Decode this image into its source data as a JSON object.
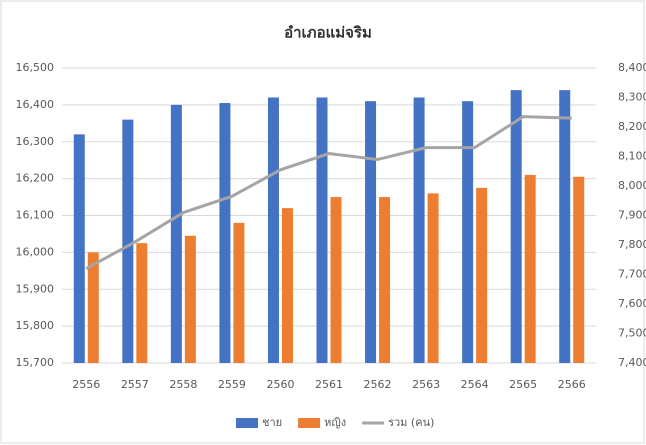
{
  "chart_data": {
    "type": "bar_line",
    "title": "อำเภอแม่จริม",
    "categories": [
      "2556",
      "2557",
      "2558",
      "2559",
      "2560",
      "2561",
      "2562",
      "2563",
      "2564",
      "2565",
      "2566"
    ],
    "series": [
      {
        "name": "ชาย",
        "color": "#4472c4",
        "type": "bar",
        "values": [
          16320,
          16360,
          16400,
          16405,
          16420,
          16420,
          16410,
          16420,
          16410,
          16440,
          16440
        ]
      },
      {
        "name": "หญิง",
        "color": "#ed7d31",
        "type": "bar",
        "values": [
          16000,
          16025,
          16045,
          16080,
          16120,
          16150,
          16150,
          16160,
          16175,
          16210,
          16205
        ]
      },
      {
        "name": "รวม (คน)",
        "color": "#a5a5a5",
        "type": "line",
        "axis": "y2",
        "values": [
          7720,
          7810,
          7910,
          7965,
          8055,
          8110,
          8090,
          8130,
          8130,
          8235,
          8230
        ]
      }
    ],
    "ylim": [
      15700,
      16500
    ],
    "yticks": [
      {
        "value": 15700,
        "label": "15,700"
      },
      {
        "value": 15800,
        "label": "15,800"
      },
      {
        "value": 15900,
        "label": "15,900"
      },
      {
        "value": 16000,
        "label": "16,000"
      },
      {
        "value": 16100,
        "label": "16,100"
      },
      {
        "value": 16200,
        "label": "16,200"
      },
      {
        "value": 16300,
        "label": "16,300"
      },
      {
        "value": 16400,
        "label": "16,400"
      },
      {
        "value": 16500,
        "label": "16,500"
      }
    ],
    "y2lim": [
      7400,
      8400
    ],
    "y2ticks": [
      {
        "value": 7400,
        "label": "7,400"
      },
      {
        "value": 7500,
        "label": "7,500"
      },
      {
        "value": 7600,
        "label": "7,600"
      },
      {
        "value": 7700,
        "label": "7,700"
      },
      {
        "value": 7800,
        "label": "7,800"
      },
      {
        "value": 7900,
        "label": "7,900"
      },
      {
        "value": 8000,
        "label": "8,000"
      },
      {
        "value": 8100,
        "label": "8,100"
      },
      {
        "value": 8200,
        "label": "8,200"
      },
      {
        "value": 8300,
        "label": "8,300"
      },
      {
        "value": 8400,
        "label": "8,400"
      }
    ],
    "grid": true,
    "legend": "bottom"
  }
}
